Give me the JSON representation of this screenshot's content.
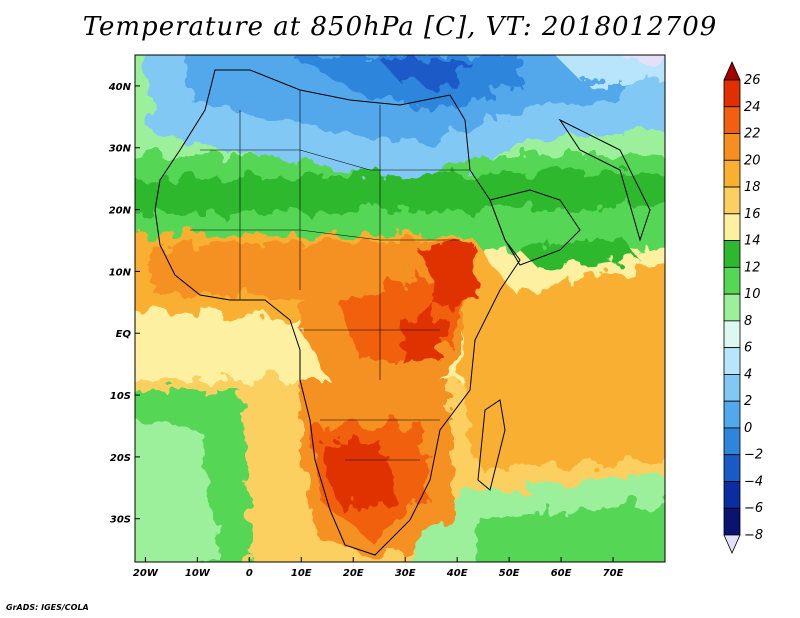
{
  "title": "Temperature at 850hPa [C], VT: 2018012709",
  "credit": "GrADS: IGES/COLA",
  "map": {
    "lon_range": [
      -22,
      80
    ],
    "lat_range": [
      -37,
      45
    ],
    "lon_ticks": [
      {
        "value": -20,
        "label": "20W"
      },
      {
        "value": -10,
        "label": "10W"
      },
      {
        "value": 0,
        "label": "0"
      },
      {
        "value": 10,
        "label": "10E"
      },
      {
        "value": 20,
        "label": "20E"
      },
      {
        "value": 30,
        "label": "30E"
      },
      {
        "value": 40,
        "label": "40E"
      },
      {
        "value": 50,
        "label": "50E"
      },
      {
        "value": 60,
        "label": "60E"
      },
      {
        "value": 70,
        "label": "70E"
      }
    ],
    "lat_ticks": [
      {
        "value": 40,
        "label": "40N"
      },
      {
        "value": 30,
        "label": "30N"
      },
      {
        "value": 20,
        "label": "20N"
      },
      {
        "value": 10,
        "label": "10N"
      },
      {
        "value": 0,
        "label": "EQ"
      },
      {
        "value": -10,
        "label": "10S"
      },
      {
        "value": -20,
        "label": "20S"
      },
      {
        "value": -30,
        "label": "30S"
      }
    ]
  },
  "colorbar": {
    "levels": [
      "26",
      "24",
      "22",
      "20",
      "18",
      "16",
      "14",
      "12",
      "10",
      "8",
      "6",
      "4",
      "2",
      "0",
      "−2",
      "−4",
      "−6",
      "−8"
    ],
    "colors": [
      "#a50000",
      "#e03000",
      "#f06010",
      "#f59020",
      "#f9b030",
      "#fcd060",
      "#fdf0a0",
      "#2eb82e",
      "#55d655",
      "#9cf09c",
      "#dcf8f0",
      "#b8e4fc",
      "#82c8f4",
      "#52a8ec",
      "#2e86dc",
      "#1a5ac8",
      "#0a2ea0",
      "#081470",
      "#e4e0fa"
    ]
  }
}
